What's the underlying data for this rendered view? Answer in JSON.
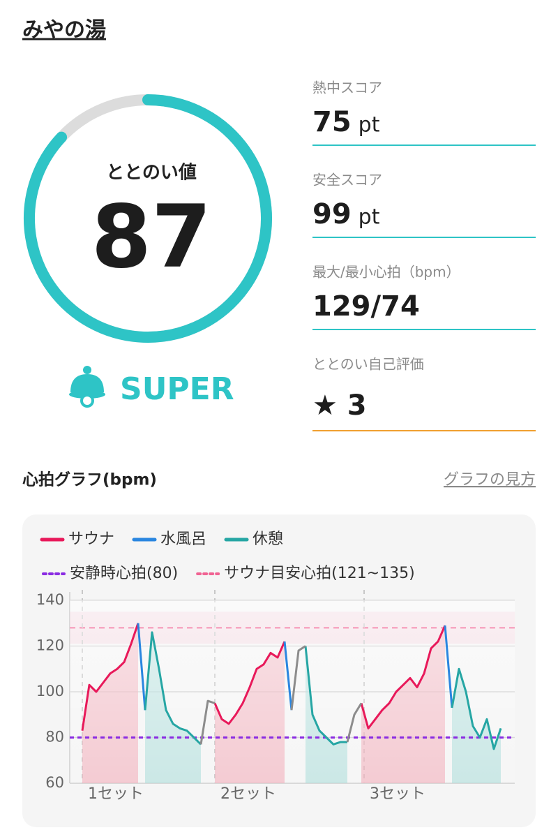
{
  "header": {
    "title": "みやの湯"
  },
  "score": {
    "label": "ととのい値",
    "value": 87,
    "max": 100,
    "rank": "SUPER"
  },
  "stats": [
    {
      "label": "熱中スコア",
      "value": 75,
      "unit": "pt"
    },
    {
      "label": "安全スコア",
      "value": 99,
      "unit": "pt"
    },
    {
      "label": "最大/最小心拍（bpm）",
      "value": "129/74"
    },
    {
      "label": "ととのい自己評価",
      "value": "★ 3"
    }
  ],
  "graph": {
    "title": "心拍グラフ(bpm)",
    "link": "グラフの見方"
  },
  "chart_data": {
    "type": "line",
    "x": [
      0,
      1,
      2,
      3,
      4,
      5,
      6,
      7,
      8,
      9,
      10,
      11,
      12,
      13,
      14,
      15,
      16,
      17,
      18,
      19,
      20,
      21,
      22,
      23,
      24,
      25,
      26,
      27,
      28,
      29,
      30,
      31,
      32,
      33,
      34,
      35,
      36,
      37,
      38,
      39,
      40,
      41,
      42,
      43,
      44,
      45,
      46,
      47,
      48,
      49,
      50,
      51,
      52,
      53,
      54,
      55,
      56,
      57,
      58,
      59,
      60
    ],
    "xlim": [
      0,
      60
    ],
    "ylim": [
      60,
      140
    ],
    "yticks": [
      60,
      80,
      100,
      120,
      140
    ],
    "grid": true,
    "series": [
      {
        "name": "サウナ",
        "color": "#e8195a",
        "fill": "#f2a9b6",
        "values": [
          83,
          103,
          100,
          104,
          108,
          110,
          113,
          121,
          130,
          null,
          null,
          null,
          null,
          null,
          null,
          null,
          null,
          null,
          null,
          95,
          88,
          86,
          90,
          95,
          102,
          110,
          112,
          117,
          115,
          122,
          null,
          null,
          null,
          null,
          null,
          null,
          null,
          null,
          null,
          null,
          95,
          84,
          88,
          92,
          95,
          100,
          103,
          106,
          102,
          108,
          119,
          122,
          129,
          null,
          null,
          null,
          null,
          null,
          null,
          null,
          null
        ]
      },
      {
        "name": "水風呂",
        "color": "#2a86e0",
        "values": [
          null,
          null,
          null,
          null,
          null,
          null,
          null,
          null,
          130,
          92,
          null,
          null,
          null,
          null,
          null,
          null,
          null,
          null,
          null,
          null,
          null,
          null,
          null,
          null,
          null,
          null,
          null,
          null,
          null,
          122,
          92,
          null,
          null,
          null,
          null,
          null,
          null,
          null,
          null,
          null,
          null,
          null,
          null,
          null,
          null,
          null,
          null,
          null,
          null,
          null,
          null,
          null,
          129,
          93,
          null,
          null,
          null,
          null,
          null,
          null,
          null
        ]
      },
      {
        "name": "休憩",
        "color": "#26a6a4",
        "fill": "#a8dcd9",
        "values": [
          null,
          null,
          null,
          null,
          null,
          null,
          null,
          null,
          null,
          92,
          126,
          110,
          92,
          86,
          84,
          83,
          80,
          77,
          null,
          null,
          null,
          null,
          null,
          null,
          null,
          null,
          null,
          null,
          null,
          null,
          null,
          null,
          120,
          90,
          83,
          80,
          77,
          78,
          78,
          null,
          null,
          null,
          null,
          null,
          null,
          null,
          null,
          null,
          null,
          null,
          null,
          null,
          null,
          93,
          110,
          100,
          85,
          80,
          88,
          75,
          84
        ]
      },
      {
        "color": "#8c8c8c",
        "values": [
          null,
          null,
          null,
          null,
          null,
          null,
          null,
          null,
          null,
          null,
          null,
          null,
          null,
          null,
          null,
          null,
          null,
          77,
          96,
          95,
          null,
          null,
          null,
          null,
          null,
          null,
          null,
          null,
          null,
          null,
          92,
          118,
          120,
          null,
          null,
          null,
          null,
          null,
          78,
          90,
          95,
          null,
          null,
          null,
          null,
          null,
          null,
          null,
          null,
          null,
          null,
          null,
          null,
          null,
          null,
          null,
          null,
          null,
          null,
          null,
          null
        ]
      }
    ],
    "reference_line": {
      "name": "安静時心拍(80)",
      "value": 80,
      "color": "#8a2be2"
    },
    "reference_band": {
      "name": "サウナ目安心拍(121~135)",
      "range": [
        121,
        135
      ],
      "color": "#f06292"
    },
    "sets": [
      {
        "x": 0,
        "label": "1セット"
      },
      {
        "x": 19,
        "label": "2セット"
      },
      {
        "x": 40.4,
        "label": "3セット"
      }
    ]
  }
}
